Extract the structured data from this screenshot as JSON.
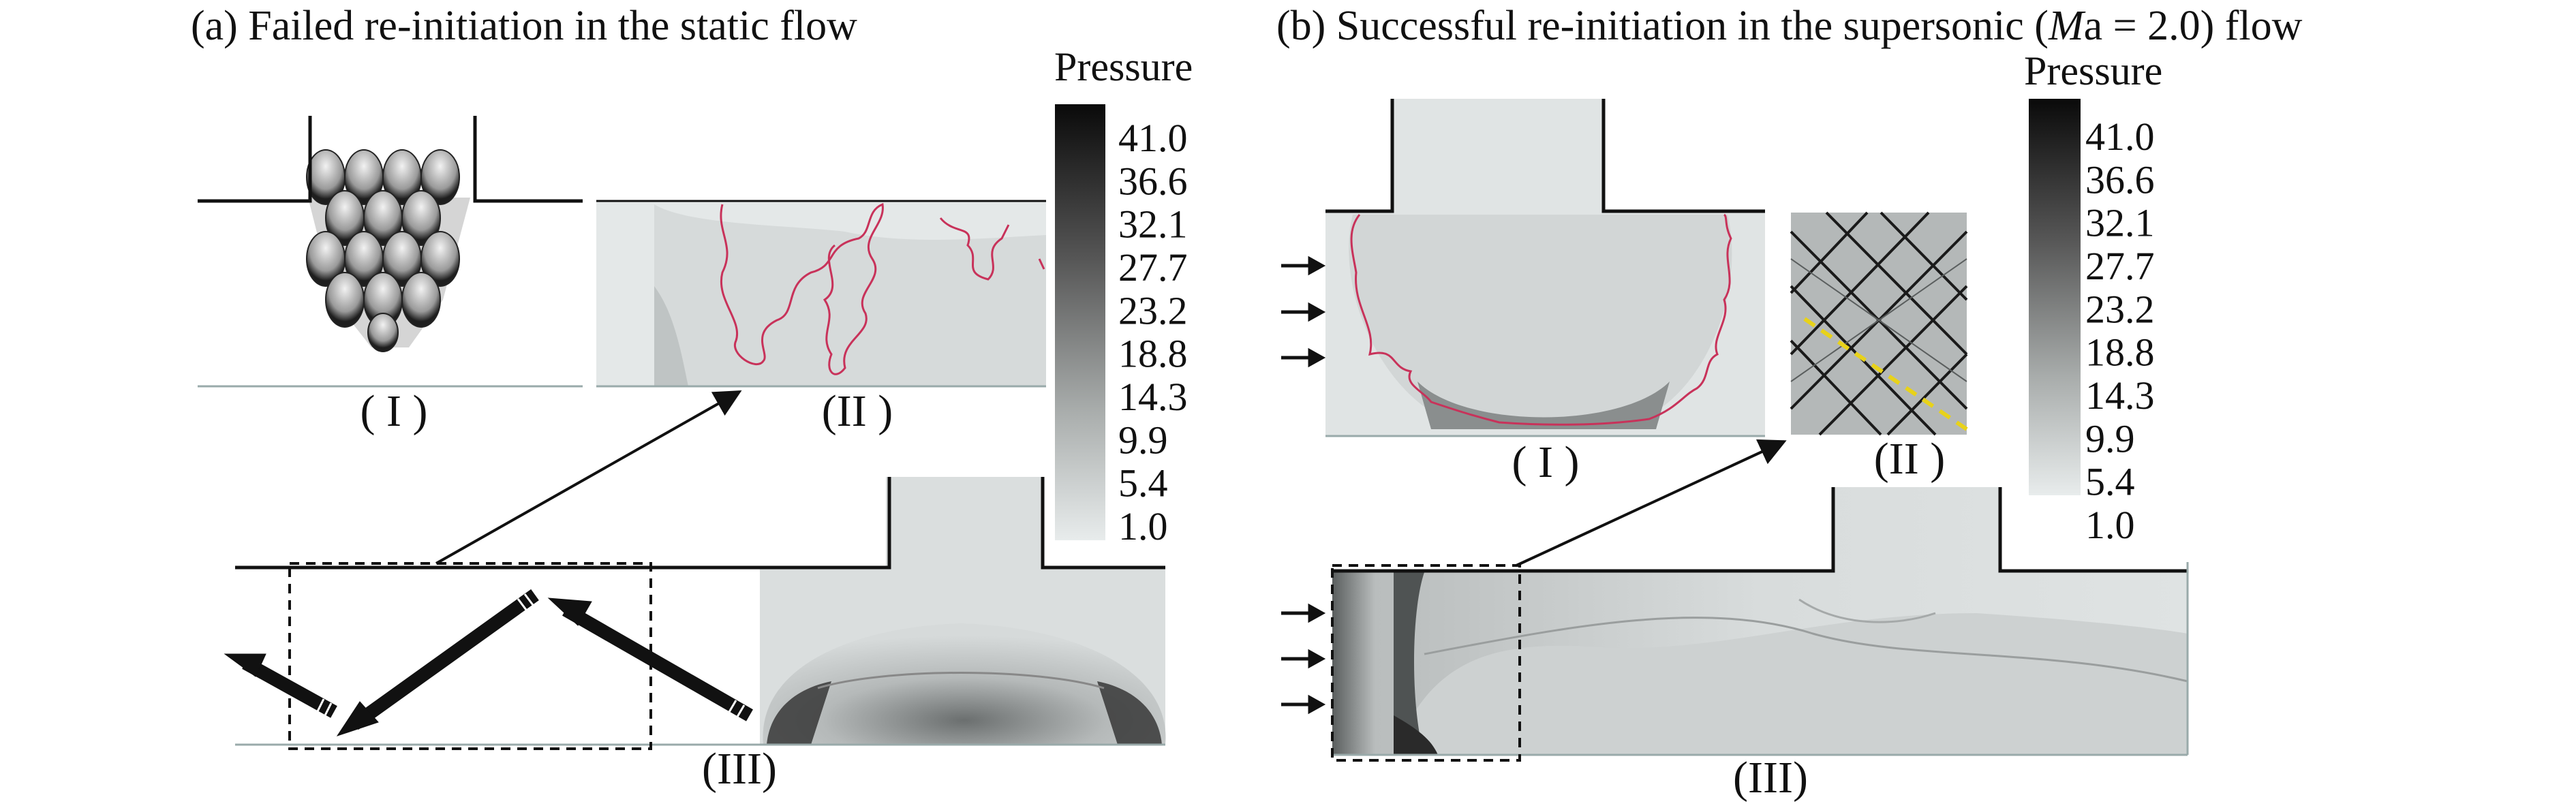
{
  "panel_a": {
    "title": "(a) Failed re-initiation in the static flow",
    "sub_I": "( I )",
    "sub_II": "(II )",
    "sub_III": "(III)",
    "colorbar_label": "Pressure",
    "colorbar_ticks": [
      "41.0",
      "36.6",
      "32.1",
      "27.7",
      "23.2",
      "18.8",
      "14.3",
      "9.9",
      "5.4",
      "1.0"
    ]
  },
  "panel_b": {
    "title_prefix": "(b) Successful re-initiation in the supersonic (",
    "title_var": "M",
    "title_suffix": "a = 2.0) flow",
    "sub_I": "( I )",
    "sub_II": "(II )",
    "sub_III": "(III)",
    "colorbar_label": "Pressure",
    "colorbar_ticks": [
      "41.0",
      "36.6",
      "32.1",
      "27.7",
      "23.2",
      "18.8",
      "14.3",
      "9.9",
      "5.4",
      "1.0"
    ]
  },
  "colors": {
    "front_line": "#c8325a",
    "dashed_yellow": "#e8d21a",
    "wall": "#111111",
    "field_light": "#d9dddd"
  }
}
